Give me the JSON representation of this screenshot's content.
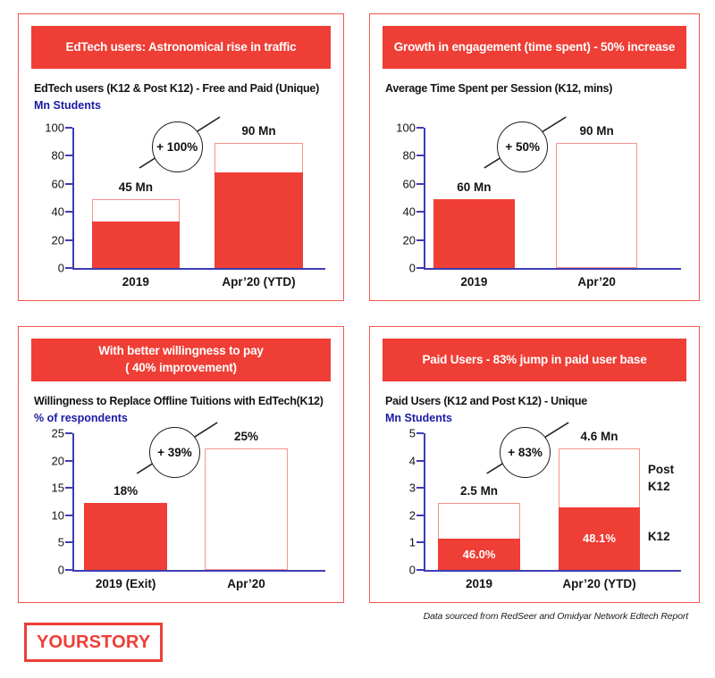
{
  "page": {
    "footer_note": "Data sourced from RedSeer and Omidyar Network Edtech Report",
    "logo_text": "YOURSTORY"
  },
  "colors": {
    "brand_red": "#EE3E35",
    "panel_border": "#F2564D",
    "bar_outline_pink": "#F5938C",
    "axis_blue": "#3D3DB5",
    "unit_label_navy": "#1A1AA6"
  },
  "chart_data": [
    {
      "type": "bar",
      "title": "EdTech users: Astronomical rise in traffic",
      "banner": {
        "line1": "EdTech users: Astronomical rise in traffic",
        "line2": ""
      },
      "subtitle": "EdTech users (K12 & Post K12) - Free and Paid (Unique)",
      "unit_label": "Mn Students",
      "ylabel": "Mn Students",
      "categories": [
        "2019",
        "Apr’20 (YTD)"
      ],
      "bar_labels": [
        "45 Mn",
        "90 Mn"
      ],
      "series": [
        {
          "name": "total_users_mn",
          "values": [
            45,
            90
          ]
        },
        {
          "name": "solid_red_portion_mn",
          "values": [
            33,
            68
          ]
        }
      ],
      "drawn": {
        "total": [
          49,
          89
        ],
        "solid": [
          33,
          68
        ]
      },
      "annotation": {
        "label": "+ 100%"
      },
      "ylim": [
        0,
        100
      ],
      "yticks": [
        0,
        20,
        40,
        60,
        80,
        100
      ],
      "grid": false
    },
    {
      "type": "bar",
      "title": "Growth in engagement (time spent) - 50% increase",
      "banner": {
        "line1": "Growth in engagement (time spent) - 50% increase",
        "line2": ""
      },
      "subtitle": "Average Time Spent per Session (K12, mins)",
      "unit_label": "",
      "ylabel": "",
      "categories": [
        "2019",
        "Apr’20"
      ],
      "bar_labels": [
        "60 Mn",
        "90 Mn"
      ],
      "series": [
        {
          "name": "avg_time_spent_mins",
          "values": [
            60,
            90
          ]
        }
      ],
      "drawn": {
        "total": [
          49,
          89
        ],
        "solid": [
          49,
          0
        ]
      },
      "annotation": {
        "label": "+ 50%"
      },
      "ylim": [
        0,
        100
      ],
      "yticks": [
        0,
        20,
        40,
        60,
        80,
        100
      ],
      "grid": false
    },
    {
      "type": "bar",
      "title": "With better willingness to pay ( 40% improvement)",
      "banner": {
        "line1": "With better willingness to pay",
        "line2": "( 40% improvement)"
      },
      "subtitle": "Willingness to Replace Offline Tuitions with EdTech(K12)",
      "unit_label": "% of respondents",
      "ylabel": "% of respondents",
      "categories": [
        "2019 (Exit)",
        "Apr’20"
      ],
      "bar_labels": [
        "18%",
        "25%"
      ],
      "series": [
        {
          "name": "pct_of_respondents",
          "values": [
            18,
            25
          ]
        }
      ],
      "drawn": {
        "total": [
          12.2,
          22.2
        ],
        "solid": [
          12.2,
          0
        ]
      },
      "annotation": {
        "label": "+ 39%"
      },
      "ylim": [
        0,
        25
      ],
      "yticks": [
        0,
        5,
        10,
        15,
        20,
        25
      ],
      "grid": false
    },
    {
      "type": "bar",
      "title": "Paid Users - 83% jump in paid user base",
      "banner": {
        "line1": "Paid Users - 83% jump in paid user base",
        "line2": ""
      },
      "subtitle": "Paid Users (K12 and Post K12) - Unique",
      "unit_label": "Mn Students",
      "ylabel": "Mn Students",
      "categories": [
        "2019",
        "Apr’20 (YTD)"
      ],
      "bar_labels": [
        "2.5 Mn",
        "4.6 Mn"
      ],
      "series": [
        {
          "name": "total_paid_users_mn",
          "values": [
            2.5,
            4.6
          ]
        },
        {
          "name": "k12_share_pct",
          "values": [
            46.0,
            48.1
          ]
        }
      ],
      "drawn": {
        "total": [
          2.45,
          4.45
        ],
        "solid": [
          1.15,
          2.3
        ]
      },
      "inner_labels": [
        "46.0%",
        "48.1%"
      ],
      "side_labels": [
        {
          "text": "Post K12",
          "bottom_pct": 55
        },
        {
          "text": "K12",
          "bottom_pct": 18
        }
      ],
      "annotation": {
        "label": "+ 83%"
      },
      "ylim": [
        0,
        5
      ],
      "yticks": [
        0,
        1,
        2,
        3,
        4,
        5
      ],
      "grid": false
    }
  ]
}
